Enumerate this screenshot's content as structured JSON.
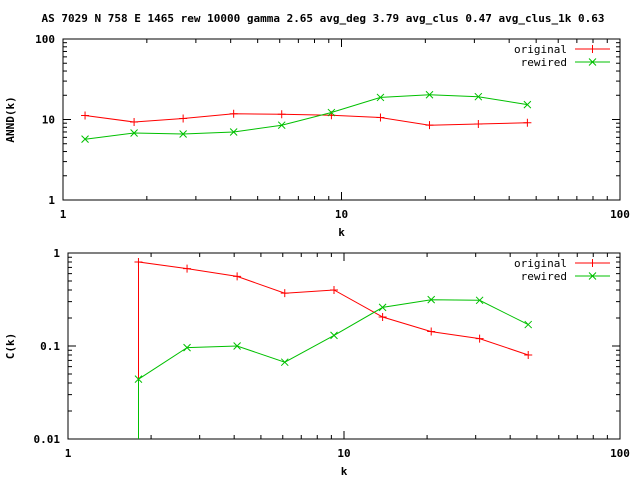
{
  "title": "AS 7029 N 758 E 1465 rew 10000 gamma 2.65 avg_deg 3.79 avg_clus 0.47 avg_clus_1k 0.63",
  "colors": {
    "original": "#ff0000",
    "rewired": "#00c000",
    "axis": "#000000"
  },
  "chart_data": [
    {
      "type": "line",
      "xlabel": "k",
      "ylabel": "ANND(k)",
      "xscale": "log",
      "yscale": "log",
      "xlim": [
        1,
        100
      ],
      "ylim": [
        1,
        100
      ],
      "xticks": [
        "1",
        "10",
        "100"
      ],
      "yticks": [
        "1",
        "10",
        "100"
      ],
      "legend": "top-right",
      "series": [
        {
          "name": "original",
          "marker": "plus",
          "x": [
            1.2,
            1.8,
            2.7,
            4.1,
            6.1,
            9.2,
            13.8,
            20.7,
            31,
            46.5
          ],
          "y": [
            11.2,
            9.3,
            10.3,
            11.8,
            11.6,
            11.3,
            10.6,
            8.5,
            8.8,
            9.1
          ]
        },
        {
          "name": "rewired",
          "marker": "x",
          "x": [
            1.2,
            1.8,
            2.7,
            4.1,
            6.1,
            9.2,
            13.8,
            20.7,
            31,
            46.5
          ],
          "y": [
            5.7,
            6.8,
            6.6,
            7.0,
            8.5,
            12.2,
            18.8,
            20.3,
            19.2,
            15.3
          ]
        }
      ]
    },
    {
      "type": "line",
      "xlabel": "k",
      "ylabel": "C(k)",
      "xscale": "log",
      "yscale": "log",
      "xlim": [
        1,
        100
      ],
      "ylim": [
        0.01,
        1
      ],
      "xticks": [
        "1",
        "10",
        "100"
      ],
      "yticks": [
        "0.01",
        "0.1",
        "1"
      ],
      "legend": "top-right",
      "series": [
        {
          "name": "original",
          "marker": "plus",
          "x": [
            1.8,
            1.8,
            2.7,
            4.1,
            6.1,
            9.2,
            13.8,
            20.7,
            31,
            46.5
          ],
          "y": [
            0.01,
            0.8,
            0.68,
            0.56,
            0.37,
            0.4,
            0.205,
            0.143,
            0.12,
            0.08
          ]
        },
        {
          "name": "rewired",
          "marker": "x",
          "x": [
            1.8,
            1.8,
            2.7,
            4.1,
            6.1,
            9.2,
            13.8,
            20.7,
            31,
            46.5
          ],
          "y": [
            0.01,
            0.044,
            0.096,
            0.1,
            0.067,
            0.13,
            0.26,
            0.315,
            0.31,
            0.17
          ]
        }
      ]
    }
  ]
}
